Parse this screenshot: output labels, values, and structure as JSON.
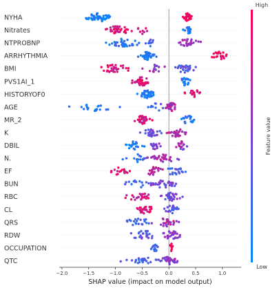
{
  "chart_data": {
    "type": "scatter",
    "subtype": "shap-beeswarm",
    "title": "",
    "xlabel": "SHAP value (impact on model output)",
    "ylabel": "",
    "xlim": [
      -2.05,
      1.35
    ],
    "x_ticks": [
      -2.0,
      -1.5,
      -1.0,
      -0.5,
      0.0,
      0.5,
      1.0
    ],
    "x_tick_labels": [
      "−2.0",
      "−1.5",
      "−1.0",
      "−0.5",
      "0.0",
      "0.5",
      "1.0"
    ],
    "grid": false,
    "colorbar": {
      "label": "Feature value",
      "high_label": "High",
      "low_label": "Low",
      "low_color": "#008afb",
      "high_color": "#ff0052",
      "placement": "right"
    },
    "features": [
      {
        "name": "NYHA",
        "clusters": [
          {
            "center": -1.3,
            "spread": 0.2,
            "count": 45,
            "fv": 0.05
          },
          {
            "center": 0.35,
            "spread": 0.07,
            "count": 30,
            "fv": 0.95
          }
        ]
      },
      {
        "name": "Nitrates",
        "clusters": [
          {
            "center": -0.95,
            "spread": 0.2,
            "count": 35,
            "fv": 0.85
          },
          {
            "center": -0.5,
            "spread": 0.08,
            "count": 8,
            "fv": 0.8
          },
          {
            "center": 0.35,
            "spread": 0.06,
            "count": 20,
            "fv": 0.1
          }
        ]
      },
      {
        "name": "NTPROBNP",
        "clusters": [
          {
            "center": -0.85,
            "spread": 0.25,
            "count": 35,
            "fv": 0.15
          },
          {
            "center": -0.35,
            "spread": 0.1,
            "count": 10,
            "fv": 0.3
          },
          {
            "center": 0.35,
            "spread": 0.15,
            "count": 25,
            "fv": 0.65
          }
        ]
      },
      {
        "name": "ARRHYTHMIA",
        "clusters": [
          {
            "center": -0.4,
            "spread": 0.1,
            "count": 40,
            "fv": 0.1
          },
          {
            "center": 0.95,
            "spread": 0.12,
            "count": 20,
            "fv": 0.95
          }
        ]
      },
      {
        "name": "BMI",
        "clusters": [
          {
            "center": -1.0,
            "spread": 0.25,
            "count": 30,
            "fv": 0.85
          },
          {
            "center": -0.3,
            "spread": 0.2,
            "count": 15,
            "fv": 0.6
          },
          {
            "center": 0.3,
            "spread": 0.15,
            "count": 25,
            "fv": 0.35
          }
        ]
      },
      {
        "name": "PVS1AI_1",
        "clusters": [
          {
            "center": -0.5,
            "spread": 0.15,
            "count": 35,
            "fv": 0.85
          },
          {
            "center": 0.3,
            "spread": 0.1,
            "count": 20,
            "fv": 0.15
          }
        ]
      },
      {
        "name": "HISTORYOF0",
        "clusters": [
          {
            "center": -0.4,
            "spread": 0.12,
            "count": 40,
            "fv": 0.1
          },
          {
            "center": 0.5,
            "spread": 0.15,
            "count": 15,
            "fv": 0.9
          }
        ]
      },
      {
        "name": "AGE",
        "clusters": [
          {
            "center": -1.35,
            "spread": 0.3,
            "count": 20,
            "fv": 0.1
          },
          {
            "center": -0.25,
            "spread": 0.15,
            "count": 10,
            "fv": 0.3
          },
          {
            "center": 0.05,
            "spread": 0.08,
            "count": 30,
            "fv": 0.7
          }
        ]
      },
      {
        "name": "MR_2",
        "clusters": [
          {
            "center": -0.5,
            "spread": 0.1,
            "count": 35,
            "fv": 0.85
          },
          {
            "center": 0.35,
            "spread": 0.12,
            "count": 20,
            "fv": 0.15
          }
        ]
      },
      {
        "name": "K",
        "clusters": [
          {
            "center": -0.35,
            "spread": 0.15,
            "count": 30,
            "fv": 0.4
          },
          {
            "center": 0.15,
            "spread": 0.15,
            "count": 30,
            "fv": 0.7
          }
        ]
      },
      {
        "name": "DBIL",
        "clusters": [
          {
            "center": -0.65,
            "spread": 0.15,
            "count": 20,
            "fv": 0.1
          },
          {
            "center": -0.25,
            "spread": 0.1,
            "count": 15,
            "fv": 0.5
          },
          {
            "center": 0.25,
            "spread": 0.1,
            "count": 20,
            "fv": 0.6
          }
        ]
      },
      {
        "name": "N.",
        "clusters": [
          {
            "center": -0.6,
            "spread": 0.15,
            "count": 15,
            "fv": 0.2
          },
          {
            "center": -0.1,
            "spread": 0.2,
            "count": 30,
            "fv": 0.65
          }
        ]
      },
      {
        "name": "EF",
        "clusters": [
          {
            "center": -0.95,
            "spread": 0.2,
            "count": 20,
            "fv": 0.9
          },
          {
            "center": -0.3,
            "spread": 0.15,
            "count": 20,
            "fv": 0.7
          },
          {
            "center": 0.1,
            "spread": 0.15,
            "count": 20,
            "fv": 0.3
          }
        ]
      },
      {
        "name": "BUN",
        "clusters": [
          {
            "center": -0.6,
            "spread": 0.2,
            "count": 15,
            "fv": 0.25
          },
          {
            "center": -0.1,
            "spread": 0.2,
            "count": 35,
            "fv": 0.45
          }
        ]
      },
      {
        "name": "RBC",
        "clusters": [
          {
            "center": -0.55,
            "spread": 0.2,
            "count": 25,
            "fv": 0.8
          },
          {
            "center": 0.05,
            "spread": 0.15,
            "count": 30,
            "fv": 0.45
          }
        ]
      },
      {
        "name": "CL",
        "clusters": [
          {
            "center": -0.45,
            "spread": 0.15,
            "count": 30,
            "fv": 0.85
          },
          {
            "center": 0.05,
            "spread": 0.1,
            "count": 20,
            "fv": 0.35
          }
        ]
      },
      {
        "name": "QRS",
        "clusters": [
          {
            "center": -0.55,
            "spread": 0.2,
            "count": 20,
            "fv": 0.25
          },
          {
            "center": -0.05,
            "spread": 0.15,
            "count": 25,
            "fv": 0.65
          }
        ]
      },
      {
        "name": "RDW",
        "clusters": [
          {
            "center": -0.45,
            "spread": 0.25,
            "count": 25,
            "fv": 0.35
          },
          {
            "center": 0.05,
            "spread": 0.15,
            "count": 25,
            "fv": 0.6
          }
        ]
      },
      {
        "name": "OCCUPATION",
        "clusters": [
          {
            "center": -0.25,
            "spread": 0.06,
            "count": 20,
            "fv": 0.25
          },
          {
            "center": 0.05,
            "spread": 0.03,
            "count": 10,
            "fv": 0.95
          }
        ]
      },
      {
        "name": "QTC",
        "clusters": [
          {
            "center": -0.45,
            "spread": 0.2,
            "count": 25,
            "fv": 0.3
          },
          {
            "center": 0.0,
            "spread": 0.15,
            "count": 30,
            "fv": 0.55
          }
        ]
      }
    ]
  }
}
